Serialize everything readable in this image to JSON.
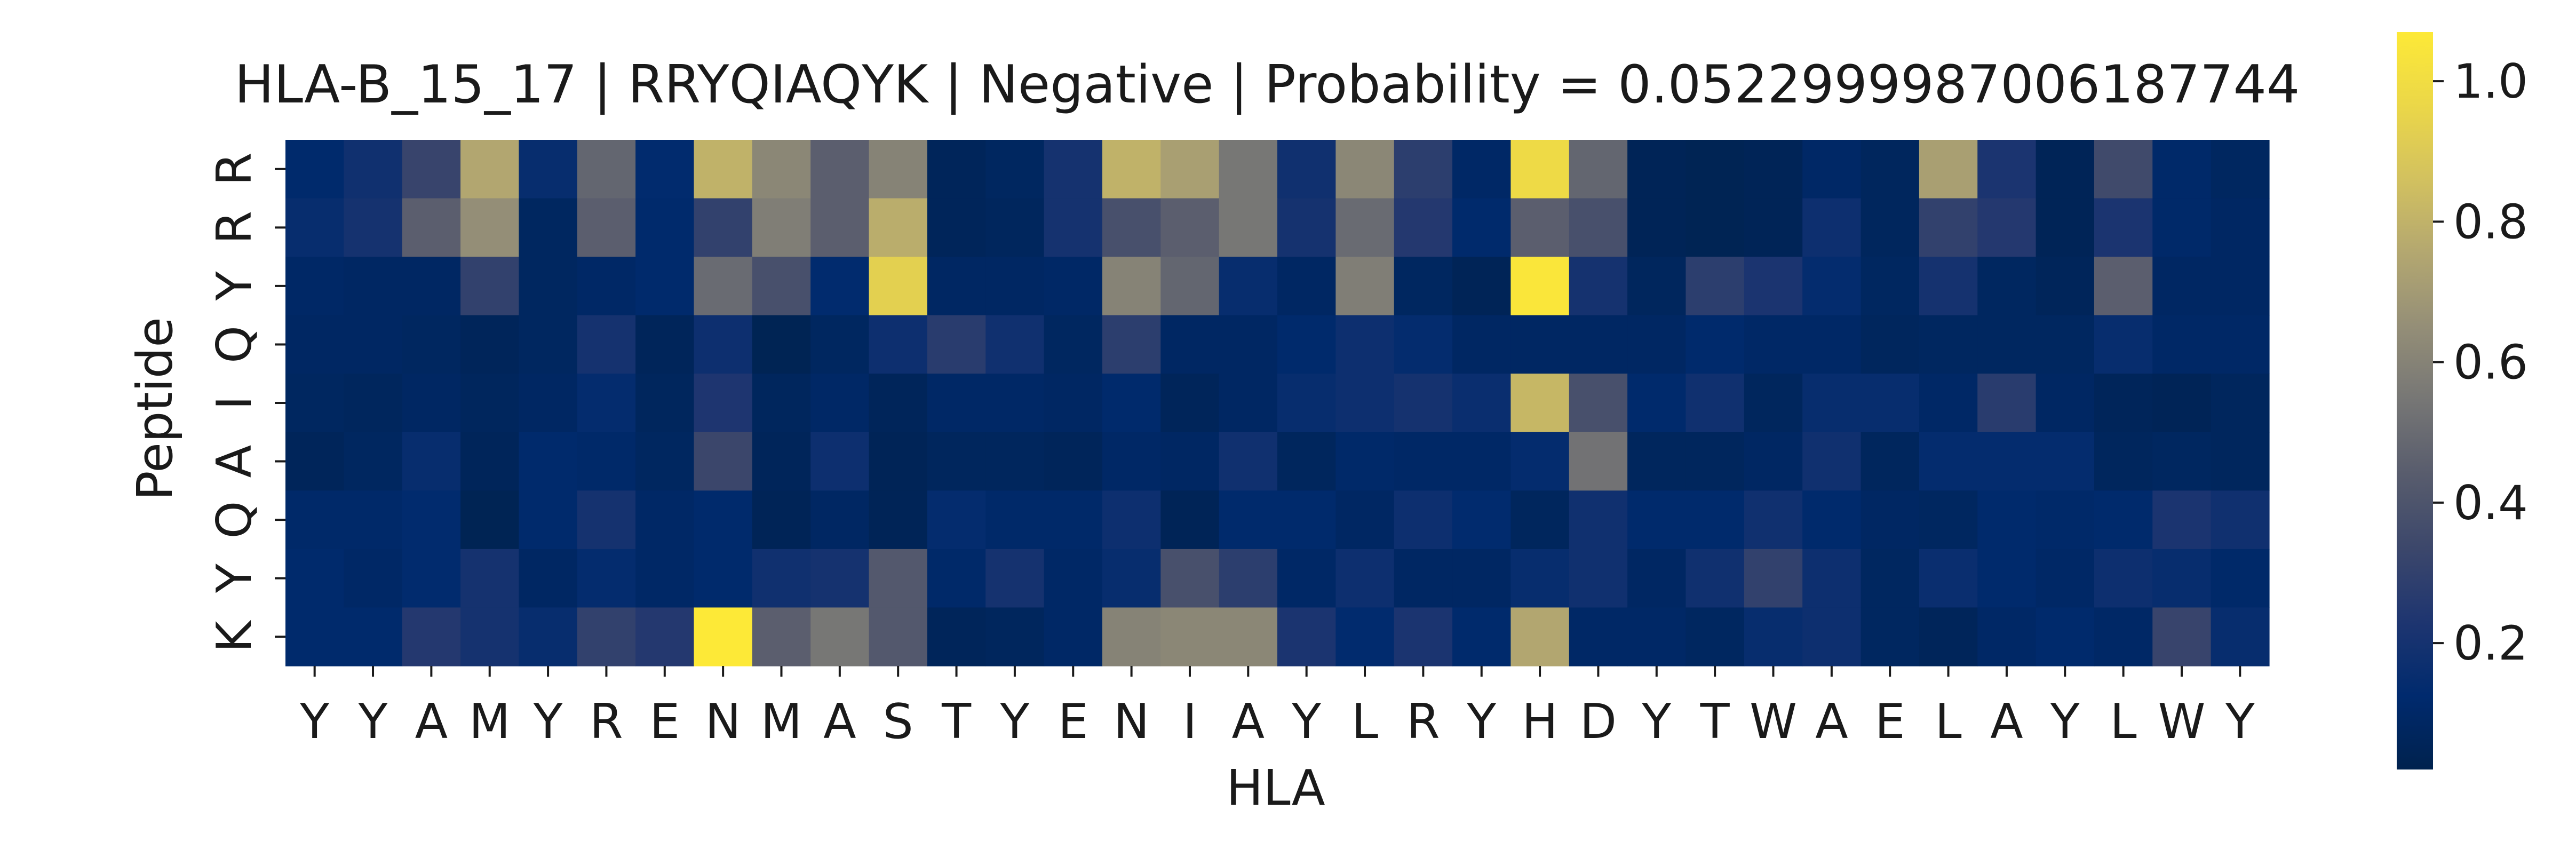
{
  "chart_data": {
    "type": "heatmap",
    "title": "HLA-B_15_17 | RRYQIAQYK | Negative | Probability = 0.0522999987006187744",
    "xlabel": "HLA",
    "ylabel": "Peptide",
    "x_categories": [
      "Y",
      "Y",
      "A",
      "M",
      "Y",
      "R",
      "E",
      "N",
      "M",
      "A",
      "S",
      "T",
      "Y",
      "E",
      "N",
      "I",
      "A",
      "Y",
      "L",
      "R",
      "Y",
      "H",
      "D",
      "Y",
      "T",
      "W",
      "A",
      "E",
      "L",
      "A",
      "Y",
      "L",
      "W",
      "Y"
    ],
    "y_categories": [
      "R",
      "R",
      "Y",
      "Q",
      "I",
      "A",
      "Q",
      "Y",
      "K"
    ],
    "values": [
      [
        0.12,
        0.18,
        0.32,
        0.75,
        0.15,
        0.48,
        0.13,
        0.8,
        0.62,
        0.45,
        0.6,
        0.06,
        0.08,
        0.2,
        0.8,
        0.72,
        0.55,
        0.18,
        0.62,
        0.28,
        0.1,
        0.98,
        0.48,
        0.05,
        0.04,
        0.05,
        0.1,
        0.07,
        0.72,
        0.22,
        0.05,
        0.35,
        0.11,
        0.08
      ],
      [
        0.15,
        0.2,
        0.45,
        0.65,
        0.08,
        0.45,
        0.12,
        0.3,
        0.58,
        0.45,
        0.78,
        0.06,
        0.07,
        0.2,
        0.38,
        0.45,
        0.55,
        0.2,
        0.5,
        0.25,
        0.12,
        0.45,
        0.38,
        0.05,
        0.04,
        0.05,
        0.17,
        0.07,
        0.3,
        0.25,
        0.05,
        0.22,
        0.11,
        0.09
      ],
      [
        0.1,
        0.09,
        0.09,
        0.3,
        0.08,
        0.1,
        0.12,
        0.5,
        0.38,
        0.13,
        0.93,
        0.09,
        0.09,
        0.1,
        0.6,
        0.48,
        0.15,
        0.09,
        0.58,
        0.08,
        0.05,
        1.05,
        0.2,
        0.07,
        0.28,
        0.22,
        0.14,
        0.08,
        0.2,
        0.08,
        0.06,
        0.45,
        0.09,
        0.09
      ],
      [
        0.09,
        0.09,
        0.08,
        0.06,
        0.08,
        0.2,
        0.06,
        0.17,
        0.04,
        0.08,
        0.17,
        0.27,
        0.18,
        0.08,
        0.28,
        0.09,
        0.09,
        0.12,
        0.17,
        0.14,
        0.09,
        0.09,
        0.09,
        0.09,
        0.12,
        0.1,
        0.1,
        0.07,
        0.08,
        0.08,
        0.08,
        0.15,
        0.1,
        0.1
      ],
      [
        0.08,
        0.07,
        0.09,
        0.07,
        0.09,
        0.14,
        0.07,
        0.23,
        0.07,
        0.1,
        0.06,
        0.1,
        0.1,
        0.09,
        0.12,
        0.06,
        0.09,
        0.15,
        0.17,
        0.2,
        0.16,
        0.82,
        0.38,
        0.12,
        0.18,
        0.07,
        0.15,
        0.15,
        0.1,
        0.27,
        0.09,
        0.06,
        0.05,
        0.07
      ],
      [
        0.06,
        0.08,
        0.15,
        0.06,
        0.12,
        0.11,
        0.08,
        0.33,
        0.06,
        0.17,
        0.05,
        0.07,
        0.07,
        0.06,
        0.1,
        0.09,
        0.18,
        0.07,
        0.11,
        0.1,
        0.1,
        0.14,
        0.53,
        0.07,
        0.07,
        0.09,
        0.18,
        0.07,
        0.14,
        0.14,
        0.14,
        0.07,
        0.08,
        0.07
      ],
      [
        0.11,
        0.11,
        0.13,
        0.04,
        0.12,
        0.2,
        0.1,
        0.12,
        0.05,
        0.09,
        0.05,
        0.14,
        0.11,
        0.11,
        0.17,
        0.05,
        0.12,
        0.12,
        0.09,
        0.17,
        0.13,
        0.07,
        0.18,
        0.12,
        0.12,
        0.18,
        0.12,
        0.09,
        0.08,
        0.12,
        0.11,
        0.12,
        0.22,
        0.18
      ],
      [
        0.12,
        0.1,
        0.13,
        0.2,
        0.09,
        0.14,
        0.1,
        0.12,
        0.18,
        0.2,
        0.42,
        0.11,
        0.2,
        0.1,
        0.15,
        0.38,
        0.28,
        0.1,
        0.17,
        0.09,
        0.09,
        0.15,
        0.18,
        0.09,
        0.18,
        0.3,
        0.17,
        0.08,
        0.16,
        0.12,
        0.1,
        0.17,
        0.15,
        0.11
      ],
      [
        0.12,
        0.12,
        0.25,
        0.2,
        0.15,
        0.3,
        0.25,
        1.07,
        0.45,
        0.55,
        0.42,
        0.06,
        0.07,
        0.1,
        0.6,
        0.62,
        0.62,
        0.22,
        0.13,
        0.22,
        0.12,
        0.75,
        0.1,
        0.1,
        0.08,
        0.15,
        0.17,
        0.08,
        0.06,
        0.1,
        0.12,
        0.1,
        0.32,
        0.15
      ]
    ],
    "colormap": "cividis",
    "colorbar": {
      "range": [
        0.02,
        1.07
      ],
      "ticks": [
        0.2,
        0.4,
        0.6,
        0.8,
        1.0
      ],
      "tick_labels": [
        "0.2",
        "0.4",
        "0.6",
        "0.8",
        "1.0"
      ]
    },
    "grid": false,
    "legend": "colorbar-right"
  }
}
